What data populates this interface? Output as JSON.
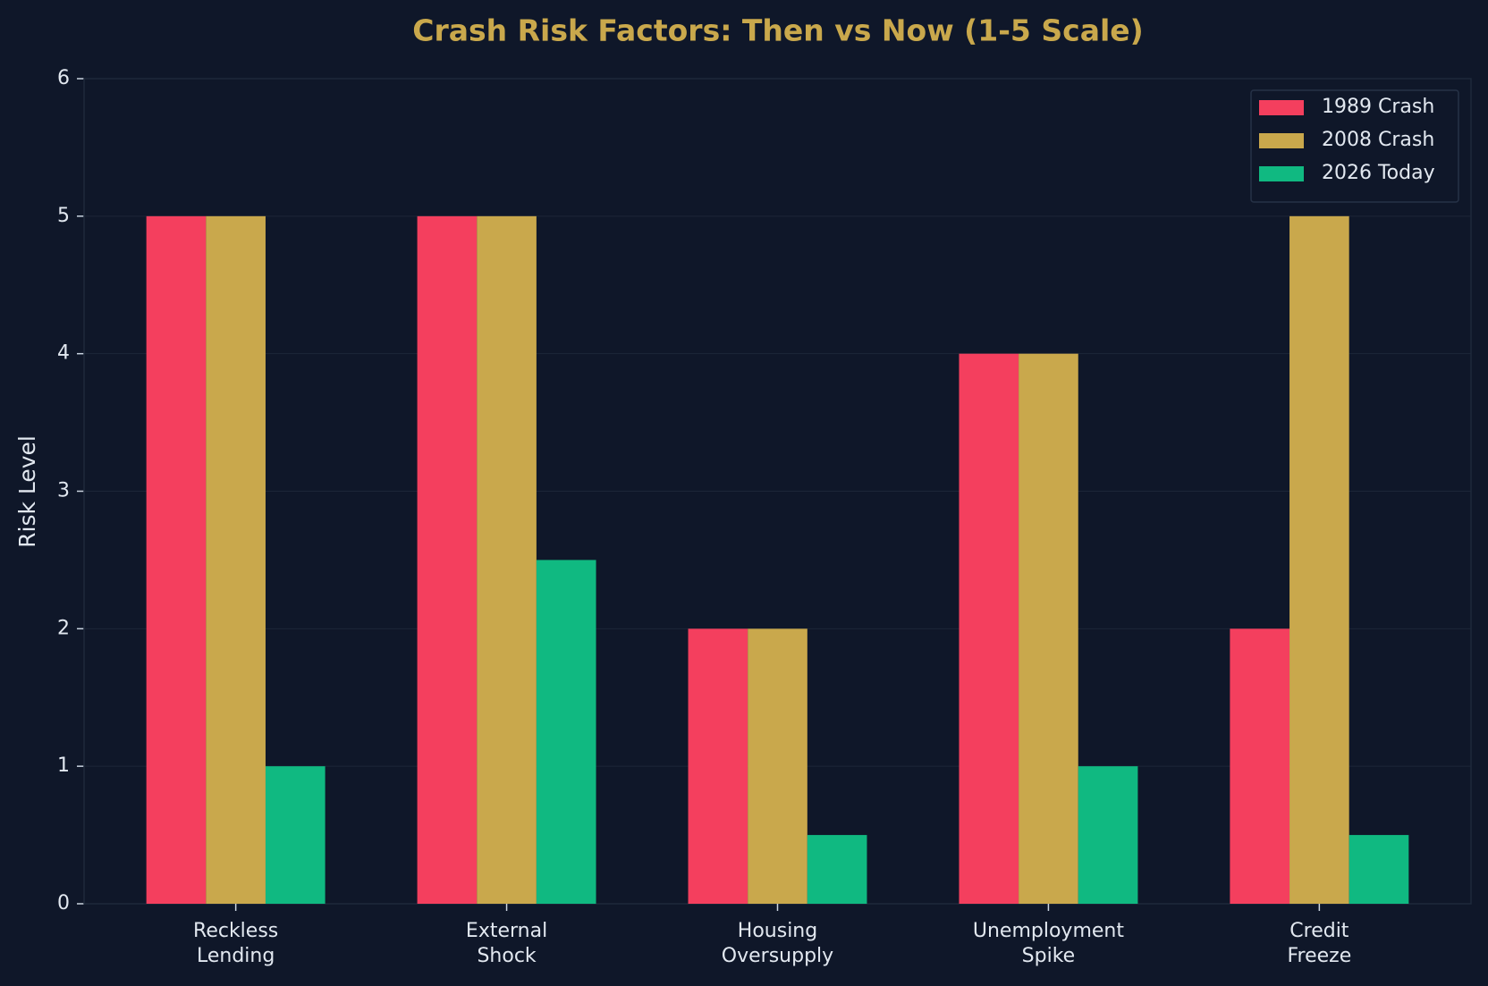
{
  "chart_data": {
    "type": "bar",
    "title": "Crash Risk Factors: Then vs Now (1-5 Scale)",
    "y_label": "Risk Level",
    "categories": [
      [
        "Reckless",
        "Lending"
      ],
      [
        "External",
        "Shock"
      ],
      [
        "Housing",
        "Oversupply"
      ],
      [
        "Unemployment",
        "Spike"
      ],
      [
        "Credit",
        "Freeze"
      ]
    ],
    "series": [
      {
        "name": "1989 Crash",
        "color": "#f43f5e",
        "values": [
          5,
          5,
          2,
          4,
          2
        ]
      },
      {
        "name": "2008 Crash",
        "color": "#c9a84c",
        "values": [
          5,
          5,
          2,
          4,
          5
        ]
      },
      {
        "name": "2026 Today",
        "color": "#10b981",
        "values": [
          1,
          2.5,
          0.5,
          1,
          0.5
        ]
      }
    ],
    "ylim": [
      0,
      6
    ],
    "yticks": [
      0,
      1,
      2,
      3,
      4,
      5,
      6
    ],
    "grid": true,
    "legend": "upper right"
  }
}
